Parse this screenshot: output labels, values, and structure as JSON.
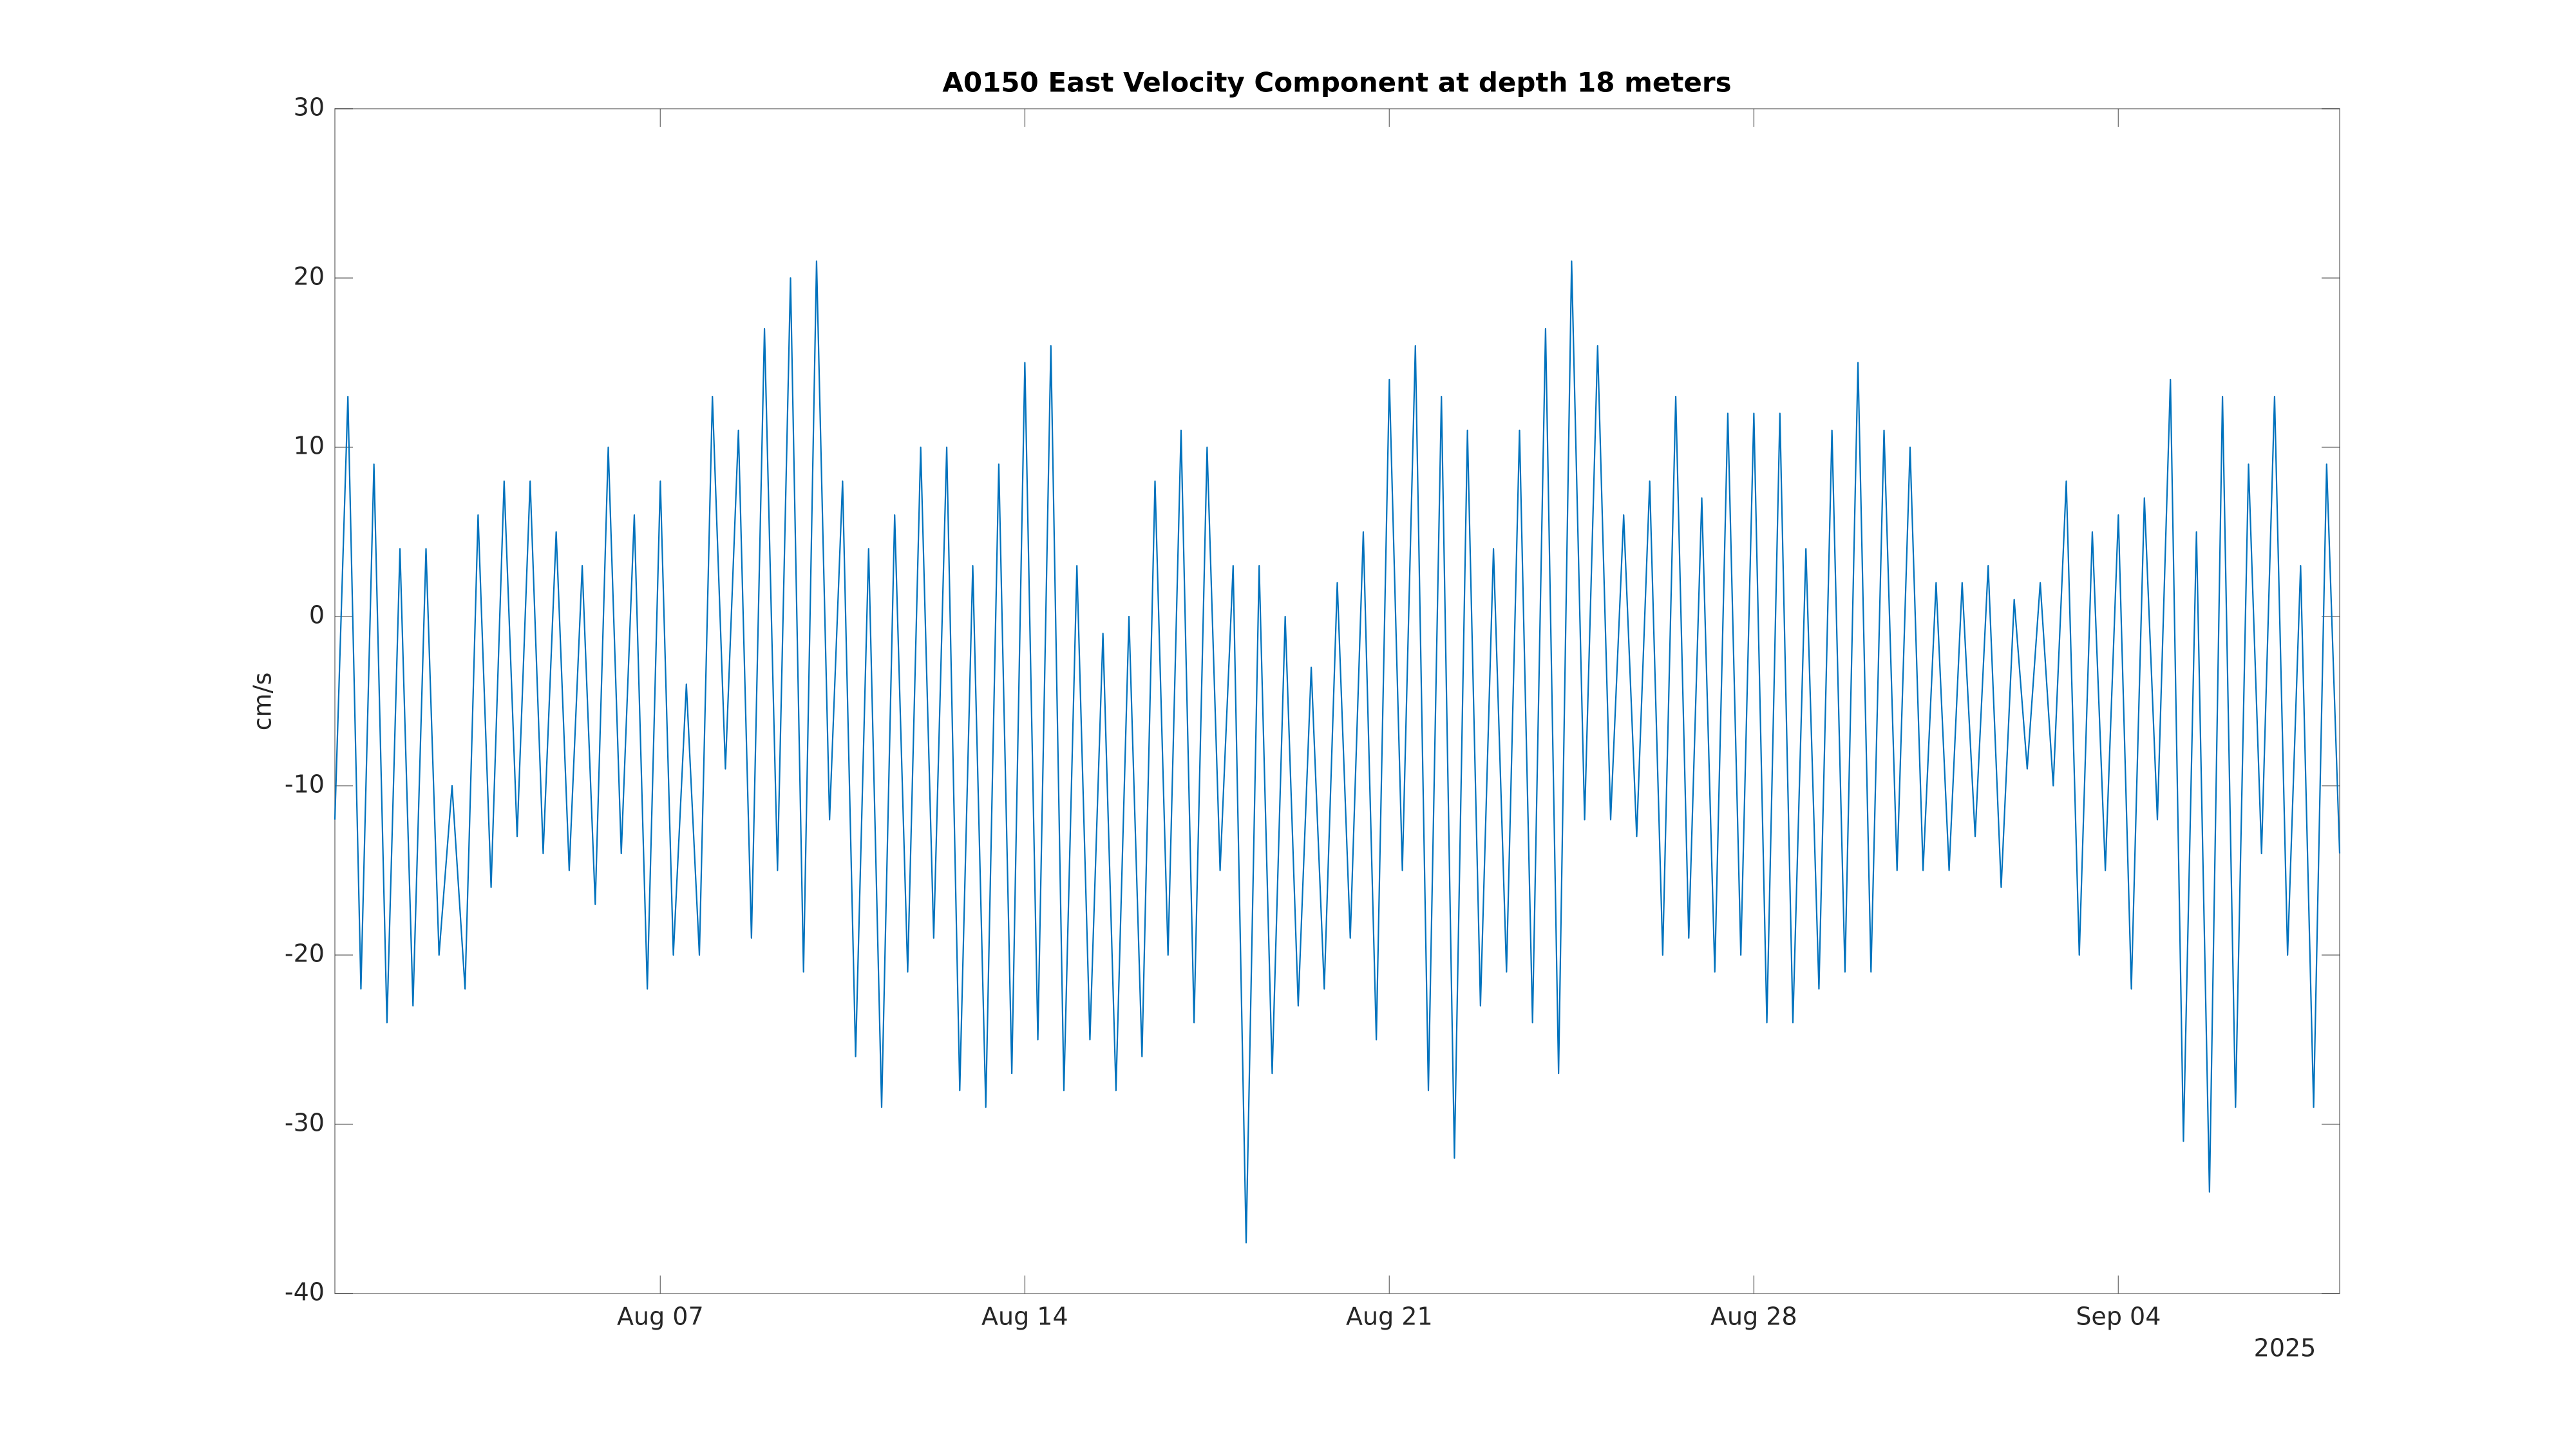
{
  "chart_data": {
    "type": "line",
    "title": "A0150 East Velocity Component at depth 18 meters",
    "y_label": "cm/s",
    "x_year_label": "2025",
    "xlim": [
      "2025-07-31T18:00",
      "2025-09-08T06:00"
    ],
    "xticks": [
      {
        "value": "2025-08-07T00:00",
        "label": "Aug 07"
      },
      {
        "value": "2025-08-14T00:00",
        "label": "Aug 14"
      },
      {
        "value": "2025-08-21T00:00",
        "label": "Aug 21"
      },
      {
        "value": "2025-08-28T00:00",
        "label": "Aug 28"
      },
      {
        "value": "2025-09-04T00:00",
        "label": "Sep 04"
      }
    ],
    "ylim": [
      -40,
      30
    ],
    "yticks": [
      -40,
      -30,
      -20,
      -10,
      0,
      10,
      20,
      30
    ],
    "grid": false,
    "x": [
      "2025-07-31T18:00",
      "2025-08-01T00:00",
      "2025-08-01T06:00",
      "2025-08-01T12:00",
      "2025-08-01T18:00",
      "2025-08-02T00:00",
      "2025-08-02T06:00",
      "2025-08-02T12:00",
      "2025-08-02T18:00",
      "2025-08-03T00:00",
      "2025-08-03T06:00",
      "2025-08-03T12:00",
      "2025-08-03T18:00",
      "2025-08-04T00:00",
      "2025-08-04T06:00",
      "2025-08-04T12:00",
      "2025-08-04T18:00",
      "2025-08-05T00:00",
      "2025-08-05T06:00",
      "2025-08-05T12:00",
      "2025-08-05T18:00",
      "2025-08-06T00:00",
      "2025-08-06T06:00",
      "2025-08-06T12:00",
      "2025-08-06T18:00",
      "2025-08-07T00:00",
      "2025-08-07T06:00",
      "2025-08-07T12:00",
      "2025-08-07T18:00",
      "2025-08-08T00:00",
      "2025-08-08T06:00",
      "2025-08-08T12:00",
      "2025-08-08T18:00",
      "2025-08-09T00:00",
      "2025-08-09T06:00",
      "2025-08-09T12:00",
      "2025-08-09T18:00",
      "2025-08-10T00:00",
      "2025-08-10T06:00",
      "2025-08-10T12:00",
      "2025-08-10T18:00",
      "2025-08-11T00:00",
      "2025-08-11T06:00",
      "2025-08-11T12:00",
      "2025-08-11T18:00",
      "2025-08-12T00:00",
      "2025-08-12T06:00",
      "2025-08-12T12:00",
      "2025-08-12T18:00",
      "2025-08-13T00:00",
      "2025-08-13T06:00",
      "2025-08-13T12:00",
      "2025-08-13T18:00",
      "2025-08-14T00:00",
      "2025-08-14T06:00",
      "2025-08-14T12:00",
      "2025-08-14T18:00",
      "2025-08-15T00:00",
      "2025-08-15T06:00",
      "2025-08-15T12:00",
      "2025-08-15T18:00",
      "2025-08-16T00:00",
      "2025-08-16T06:00",
      "2025-08-16T12:00",
      "2025-08-16T18:00",
      "2025-08-17T00:00",
      "2025-08-17T06:00",
      "2025-08-17T12:00",
      "2025-08-17T18:00",
      "2025-08-18T00:00",
      "2025-08-18T06:00",
      "2025-08-18T12:00",
      "2025-08-18T18:00",
      "2025-08-19T00:00",
      "2025-08-19T06:00",
      "2025-08-19T12:00",
      "2025-08-19T18:00",
      "2025-08-20T00:00",
      "2025-08-20T06:00",
      "2025-08-20T12:00",
      "2025-08-20T18:00",
      "2025-08-21T00:00",
      "2025-08-21T06:00",
      "2025-08-21T12:00",
      "2025-08-21T18:00",
      "2025-08-22T00:00",
      "2025-08-22T06:00",
      "2025-08-22T12:00",
      "2025-08-22T18:00",
      "2025-08-23T00:00",
      "2025-08-23T06:00",
      "2025-08-23T12:00",
      "2025-08-23T18:00",
      "2025-08-24T00:00",
      "2025-08-24T06:00",
      "2025-08-24T12:00",
      "2025-08-24T18:00",
      "2025-08-25T00:00",
      "2025-08-25T06:00",
      "2025-08-25T12:00",
      "2025-08-25T18:00",
      "2025-08-26T00:00",
      "2025-08-26T06:00",
      "2025-08-26T12:00",
      "2025-08-26T18:00",
      "2025-08-27T00:00",
      "2025-08-27T06:00",
      "2025-08-27T12:00",
      "2025-08-27T18:00",
      "2025-08-28T00:00",
      "2025-08-28T06:00",
      "2025-08-28T12:00",
      "2025-08-28T18:00",
      "2025-08-29T00:00",
      "2025-08-29T06:00",
      "2025-08-29T12:00",
      "2025-08-29T18:00",
      "2025-08-30T00:00",
      "2025-08-30T06:00",
      "2025-08-30T12:00",
      "2025-08-30T18:00",
      "2025-08-31T00:00",
      "2025-08-31T06:00",
      "2025-08-31T12:00",
      "2025-08-31T18:00",
      "2025-09-01T00:00",
      "2025-09-01T06:00",
      "2025-09-01T12:00",
      "2025-09-01T18:00",
      "2025-09-02T00:00",
      "2025-09-02T06:00",
      "2025-09-02T12:00",
      "2025-09-02T18:00",
      "2025-09-03T00:00",
      "2025-09-03T06:00",
      "2025-09-03T12:00",
      "2025-09-03T18:00",
      "2025-09-04T00:00",
      "2025-09-04T06:00",
      "2025-09-04T12:00",
      "2025-09-04T18:00",
      "2025-09-05T00:00",
      "2025-09-05T06:00",
      "2025-09-05T12:00",
      "2025-09-05T18:00",
      "2025-09-06T00:00",
      "2025-09-06T06:00",
      "2025-09-06T12:00",
      "2025-09-06T18:00",
      "2025-09-07T00:00",
      "2025-09-07T06:00",
      "2025-09-07T12:00",
      "2025-09-07T18:00",
      "2025-09-08T00:00",
      "2025-09-08T06:00"
    ],
    "series": [
      {
        "name": "East velocity",
        "color": "#0072bd",
        "values": [
          -12,
          13,
          -22,
          9,
          -24,
          4,
          -23,
          4,
          -20,
          -10,
          -22,
          6,
          -16,
          8,
          -13,
          8,
          -14,
          5,
          -15,
          3,
          -17,
          10,
          -14,
          6,
          -22,
          8,
          -20,
          -4,
          -20,
          13,
          -9,
          11,
          -19,
          17,
          -15,
          20,
          -21,
          21,
          -12,
          8,
          -26,
          4,
          -29,
          6,
          -21,
          10,
          -19,
          10,
          -28,
          3,
          -29,
          9,
          -27,
          15,
          -25,
          16,
          -28,
          3,
          -25,
          -1,
          -28,
          0,
          -26,
          8,
          -20,
          11,
          -24,
          10,
          -15,
          3,
          -37,
          3,
          -27,
          0,
          -23,
          -3,
          -22,
          2,
          -19,
          5,
          -25,
          14,
          -15,
          16,
          -28,
          13,
          -32,
          11,
          -23,
          4,
          -21,
          11,
          -24,
          17,
          -27,
          21,
          -12,
          16,
          -12,
          6,
          -13,
          8,
          -20,
          13,
          -19,
          7,
          -21,
          12,
          -20,
          12,
          -24,
          12,
          -24,
          4,
          -22,
          11,
          -21,
          15,
          -21,
          11,
          -15,
          10,
          -15,
          2,
          -15,
          2,
          -13,
          3,
          -16,
          1,
          -9,
          2,
          -10,
          8,
          -20,
          5,
          -15,
          6,
          -22,
          7,
          -12,
          14,
          -31,
          5,
          -34,
          13,
          -29,
          9,
          -14,
          13,
          -20,
          3,
          -29,
          9,
          -14
        ]
      }
    ]
  }
}
